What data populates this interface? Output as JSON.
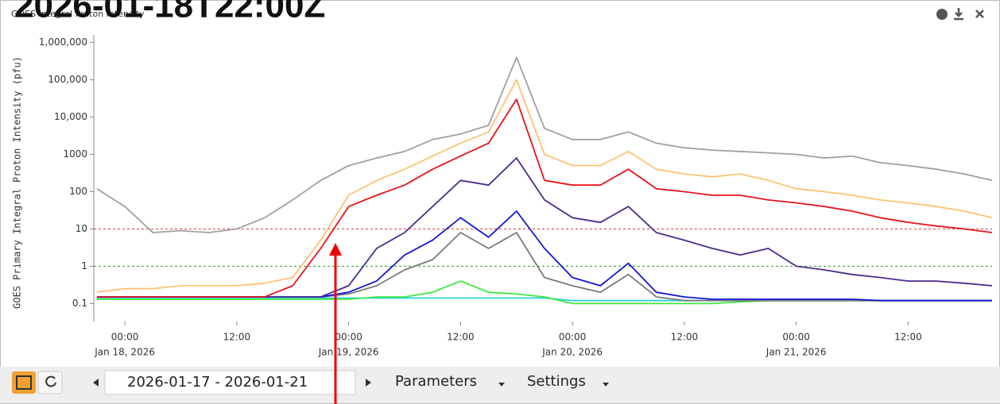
{
  "overlay_time": "2026-01-18T22:00Z",
  "toolbar": {
    "date_range": "2026-01-17 - 2026-01-21",
    "parameters": "Parameters",
    "settings": "Settings"
  },
  "chart_data": {
    "type": "line",
    "title": "GOES Integral Proton Intensity",
    "y_label": "GOES Primary Integral Proton Intensity (pfu)",
    "log_y": true,
    "x": [
      "2026-01-17T21:00",
      "2026-01-18T00:00",
      "2026-01-18T03:00",
      "2026-01-18T06:00",
      "2026-01-18T09:00",
      "2026-01-18T12:00",
      "2026-01-18T15:00",
      "2026-01-18T18:00",
      "2026-01-18T21:00",
      "2026-01-19T00:00",
      "2026-01-19T03:00",
      "2026-01-19T06:00",
      "2026-01-19T09:00",
      "2026-01-19T12:00",
      "2026-01-19T15:00",
      "2026-01-19T18:00",
      "2026-01-19T21:00",
      "2026-01-20T00:00",
      "2026-01-20T03:00",
      "2026-01-20T06:00",
      "2026-01-20T09:00",
      "2026-01-20T12:00",
      "2026-01-20T15:00",
      "2026-01-20T18:00",
      "2026-01-20T21:00",
      "2026-01-21T00:00",
      "2026-01-21T03:00",
      "2026-01-21T06:00",
      "2026-01-21T09:00",
      "2026-01-21T12:00",
      "2026-01-21T15:00",
      "2026-01-21T18:00",
      "2026-01-21T21:00"
    ],
    "xlim": [
      "2026-01-17T20:40",
      "2026-01-21T21:00"
    ],
    "xticks": [
      {
        "value": "2026-01-18T00:00",
        "label": "00:00",
        "sublabel": "Jan 18, 2026"
      },
      {
        "value": "2026-01-18T12:00",
        "label": "12:00"
      },
      {
        "value": "2026-01-19T00:00",
        "label": "00:00",
        "sublabel": "Jan 19, 2026"
      },
      {
        "value": "2026-01-19T12:00",
        "label": "12:00"
      },
      {
        "value": "2026-01-20T00:00",
        "label": "00:00",
        "sublabel": "Jan 20, 2026"
      },
      {
        "value": "2026-01-20T12:00",
        "label": "12:00"
      },
      {
        "value": "2026-01-21T00:00",
        "label": "00:00",
        "sublabel": "Jan 21, 2026"
      },
      {
        "value": "2026-01-21T12:00",
        "label": "12:00"
      }
    ],
    "ylim": [
      0.033,
      1600000
    ],
    "yticks": [
      0.1,
      1,
      10,
      100,
      1000,
      {
        "value": 10000,
        "label": "10,000"
      },
      {
        "value": 100000,
        "label": "100,000"
      },
      {
        "value": 1000000,
        "label": "1,000,000"
      }
    ],
    "thresholds": [
      {
        "value": 10,
        "color": "#e83a3a"
      },
      {
        "value": 1,
        "color": "#2aa02a"
      }
    ],
    "series": [
      {
        "color": "#2fd0e0",
        "values": [
          0.14,
          0.14,
          0.14,
          0.14,
          0.14,
          0.14,
          0.14,
          0.14,
          0.14,
          0.14,
          0.14,
          0.14,
          0.14,
          0.14,
          0.14,
          0.14,
          0.14,
          0.12,
          0.12,
          0.12,
          0.12,
          0.12,
          0.12,
          0.12,
          0.12,
          0.12,
          0.12,
          0.12,
          0.12,
          0.12,
          0.12,
          0.12,
          0.12
        ]
      },
      {
        "color": "#3ee83e",
        "values": [
          0.13,
          0.13,
          0.13,
          0.13,
          0.13,
          0.13,
          0.13,
          0.13,
          0.13,
          0.13,
          0.15,
          0.15,
          0.2,
          0.4,
          0.2,
          0.18,
          0.15,
          0.1,
          0.1,
          0.1,
          0.1,
          0.1,
          0.1,
          0.11,
          0.12,
          0.12,
          0.12,
          0.12,
          0.12,
          0.12,
          0.12,
          0.12,
          0.12
        ]
      },
      {
        "color": "#7a7a7a",
        "values": [
          0.15,
          0.15,
          0.15,
          0.15,
          0.15,
          0.15,
          0.15,
          0.15,
          0.15,
          0.18,
          0.3,
          0.8,
          1.5,
          8,
          3,
          8,
          0.5,
          0.3,
          0.2,
          0.6,
          0.15,
          0.12,
          0.12,
          0.12,
          0.12,
          0.12,
          0.12,
          0.12,
          0.12,
          0.12,
          0.12,
          0.12,
          0.12
        ]
      },
      {
        "color": "#1515d6",
        "values": [
          0.15,
          0.15,
          0.15,
          0.15,
          0.15,
          0.15,
          0.15,
          0.15,
          0.15,
          0.2,
          0.4,
          2,
          5,
          20,
          6,
          30,
          3,
          0.5,
          0.3,
          1.2,
          0.2,
          0.15,
          0.13,
          0.13,
          0.13,
          0.13,
          0.13,
          0.13,
          0.12,
          0.12,
          0.12,
          0.12,
          0.12
        ]
      },
      {
        "color": "#4b2a8f",
        "values": [
          0.15,
          0.15,
          0.15,
          0.15,
          0.15,
          0.15,
          0.15,
          0.15,
          0.15,
          0.3,
          3,
          8,
          40,
          200,
          150,
          800,
          60,
          20,
          15,
          40,
          8,
          5,
          3,
          2,
          3,
          1,
          0.8,
          0.6,
          0.5,
          0.4,
          0.4,
          0.35,
          0.3
        ]
      },
      {
        "color": "#ffc273",
        "values": [
          0.2,
          0.25,
          0.25,
          0.3,
          0.3,
          0.3,
          0.35,
          0.5,
          5,
          80,
          200,
          400,
          900,
          2000,
          4000,
          100000,
          1000,
          500,
          500,
          1200,
          400,
          300,
          250,
          300,
          200,
          120,
          100,
          80,
          60,
          50,
          40,
          30,
          20
        ]
      },
      {
        "color": "#e8141b",
        "values": [
          0.15,
          0.15,
          0.15,
          0.15,
          0.15,
          0.15,
          0.15,
          0.3,
          3,
          40,
          80,
          150,
          400,
          900,
          2000,
          30000,
          200,
          150,
          150,
          400,
          120,
          100,
          80,
          80,
          60,
          50,
          40,
          30,
          20,
          15,
          12,
          10,
          8
        ]
      },
      {
        "color": "#a0a0a0",
        "values": [
          120,
          40,
          8,
          9,
          8,
          10,
          20,
          60,
          200,
          500,
          800,
          1200,
          2500,
          3500,
          6000,
          400000,
          5000,
          2500,
          2500,
          4000,
          2000,
          1500,
          1300,
          1200,
          1100,
          1000,
          800,
          900,
          600,
          500,
          400,
          300,
          200
        ]
      }
    ]
  }
}
